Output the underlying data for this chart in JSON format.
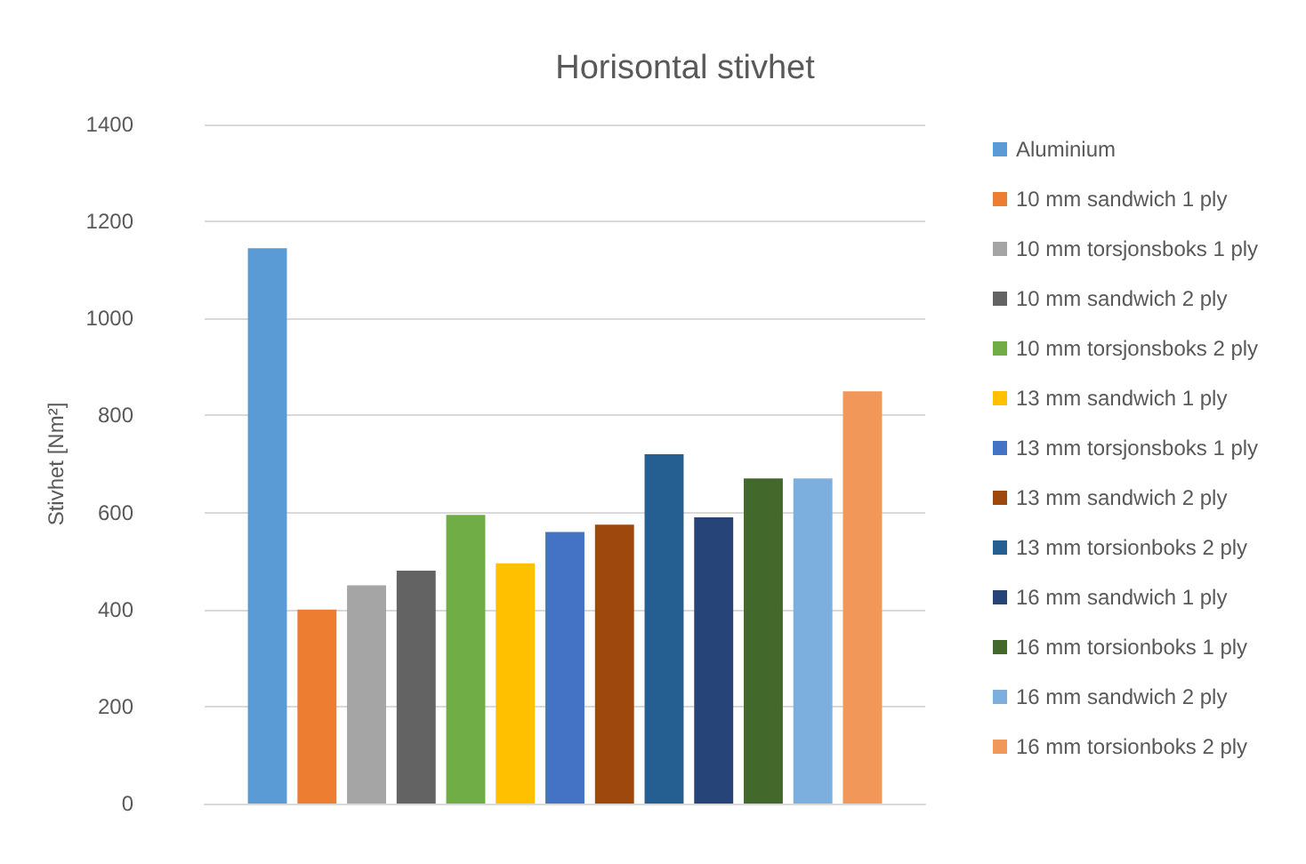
{
  "chart_data": {
    "type": "bar",
    "title": "Horisontal stivhet",
    "ylabel": "Stivhet [Nm²]",
    "categories": [
      null
    ],
    "series": [
      {
        "name": "Aluminium",
        "color": "#5b9bd5",
        "values": [
          1145
        ]
      },
      {
        "name": "10 mm sandwich 1 ply",
        "color": "#ed7d31",
        "values": [
          400
        ]
      },
      {
        "name": "10 mm torsjonsboks 1 ply",
        "color": "#a5a5a5",
        "values": [
          450
        ]
      },
      {
        "name": "10 mm sandwich 2 ply",
        "color": "#636363",
        "values": [
          480
        ]
      },
      {
        "name": "10 mm torsjonsboks 2 ply",
        "color": "#70ad47",
        "values": [
          595
        ]
      },
      {
        "name": "13 mm sandwich 1 ply",
        "color": "#ffc000",
        "values": [
          495
        ]
      },
      {
        "name": "13 mm torsjonsboks 1 ply",
        "color": "#4472c4",
        "values": [
          560
        ]
      },
      {
        "name": "13 mm sandwich 2 ply",
        "color": "#9e480e",
        "values": [
          575
        ]
      },
      {
        "name": "13 mm torsionboks 2 ply",
        "color": "#255e91",
        "values": [
          720
        ]
      },
      {
        "name": "16 mm sandwich 1 ply",
        "color": "#264478",
        "values": [
          590
        ]
      },
      {
        "name": "16 mm torsionboks 1 ply",
        "color": "#43682b",
        "values": [
          670
        ]
      },
      {
        "name": "16 mm sandwich 2 ply",
        "color": "#7cafdd",
        "values": [
          670
        ]
      },
      {
        "name": "16 mm torsionboks 2 ply",
        "color": "#f1975a",
        "values": [
          850
        ]
      }
    ],
    "ylim": [
      0,
      1400
    ],
    "yticks": [
      0,
      200,
      400,
      600,
      800,
      1000,
      1200,
      1400
    ],
    "grid": "y",
    "legend": "right",
    "tick_labels": "y"
  }
}
